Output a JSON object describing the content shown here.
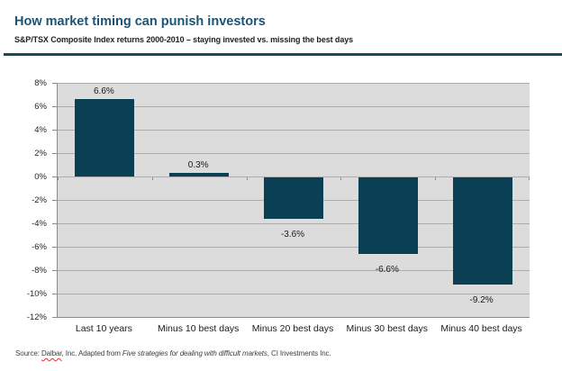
{
  "header": {
    "title": "How market timing can punish investors",
    "subtitle": "S&P/TSX Composite Index returns 2000-2010 – staying invested vs. missing the best days"
  },
  "chart_data": {
    "type": "bar",
    "title": "S&P/TSX Composite Index returns 2000-2010",
    "categories": [
      "Last 10 years",
      "Minus 10 best days",
      "Minus 20 best days",
      "Minus 30 best days",
      "Minus 40 best days"
    ],
    "values": [
      6.6,
      0.3,
      -3.6,
      -6.6,
      -9.2
    ],
    "value_labels": [
      "6.6%",
      "0.3%",
      "-3.6%",
      "-6.6%",
      "-9.2%"
    ],
    "xlabel": "",
    "ylabel": "",
    "ylim": [
      -12,
      8
    ],
    "ytick_step": 2,
    "ytick_labels": [
      "8%",
      "6%",
      "4%",
      "2%",
      "0%",
      "-2%",
      "-4%",
      "-6%",
      "-8%",
      "-10%",
      "-12%"
    ],
    "grid": true,
    "legend": "none",
    "bar_color": "#0a3f54",
    "plot_bg_color": "#dcdcdc",
    "grid_color": "#adadad"
  },
  "footer": {
    "source_prefix": "Source: ",
    "source_misspelled_word": "Dalbar",
    "source_mid": ", Inc. Adapted from ",
    "source_italic": "Five strategies for dealing with difficult markets",
    "source_suffix": ", CI Investments Inc."
  },
  "colors": {
    "title": "#1b5476",
    "header_rule": "#174b60"
  }
}
